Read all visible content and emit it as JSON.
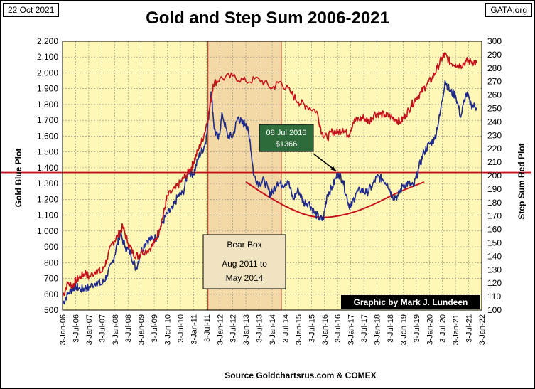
{
  "header": {
    "date": "22 Oct 2021",
    "site": "GATA.org"
  },
  "colors": {
    "plot_bg": "#FFF7B5",
    "gold_line": "#1F2A8A",
    "step_line": "#C3121B",
    "bear_box": "#F3D9A5",
    "credit_bg": "#000000",
    "callout_bg": "#2E6B3A"
  },
  "chart_data": {
    "type": "line",
    "title": "Gold and Step Sum 2006-2021",
    "xlabel": "Source  Goldchartsrus.com  & COMEX",
    "ylabel_left": "Gold    Blue Plot",
    "ylabel_right": "Step Sum     Red Plot",
    "ylim_left": [
      500,
      2200
    ],
    "ylim_right": [
      100,
      300
    ],
    "x_range": [
      2006.0,
      2022.0
    ],
    "left_ticks": [
      "500",
      "600",
      "700",
      "800",
      "900",
      "1,000",
      "1,100",
      "1,200",
      "1,300",
      "1,400",
      "1,500",
      "1,600",
      "1,700",
      "1,800",
      "1,900",
      "2,000",
      "2,100",
      "2,200"
    ],
    "left_tick_values": [
      500,
      600,
      700,
      800,
      900,
      1000,
      1100,
      1200,
      1300,
      1400,
      1500,
      1600,
      1700,
      1800,
      1900,
      2000,
      2100,
      2200
    ],
    "right_ticks": [
      "100",
      "110",
      "120",
      "130",
      "140",
      "150",
      "160",
      "170",
      "180",
      "190",
      "200",
      "210",
      "220",
      "230",
      "240",
      "250",
      "260",
      "270",
      "280",
      "290",
      "300"
    ],
    "right_tick_values": [
      100,
      110,
      120,
      130,
      140,
      150,
      160,
      170,
      180,
      190,
      200,
      210,
      220,
      230,
      240,
      250,
      260,
      270,
      280,
      290,
      300
    ],
    "x_labels": [
      "3-Jan-06",
      "3-Jul-06",
      "3-Jan-07",
      "3-Jul-07",
      "3-Jan-08",
      "3-Jul-08",
      "3-Jan-09",
      "3-Jul-09",
      "3-Jan-10",
      "3-Jul-10",
      "3-Jan-11",
      "3-Jul-11",
      "3-Jan-12",
      "3-Jul-12",
      "3-Jan-13",
      "3-Jul-13",
      "3-Jan-14",
      "3-Jul-14",
      "3-Jan-15",
      "3-Jul-15",
      "3-Jan-16",
      "3-Jul-16",
      "3-Jan-17",
      "3-Jul-17",
      "3-Jan-18",
      "3-Jul-18",
      "3-Jan-19",
      "3-Jul-19",
      "3-Jan-20",
      "3-Jul-20",
      "3-Jan-21",
      "3-Jul-21",
      "3-Jan-22"
    ],
    "x_label_positions": [
      2006.0,
      2006.5,
      2007.0,
      2007.5,
      2008.0,
      2008.5,
      2009.0,
      2009.5,
      2010.0,
      2010.5,
      2011.0,
      2011.5,
      2012.0,
      2012.5,
      2013.0,
      2013.5,
      2014.0,
      2014.5,
      2015.0,
      2015.5,
      2016.0,
      2016.5,
      2017.0,
      2017.5,
      2018.0,
      2018.5,
      2019.0,
      2019.5,
      2020.0,
      2020.5,
      2021.0,
      2021.5,
      2022.0
    ],
    "series": [
      {
        "name": "Gold",
        "axis": "left",
        "color": "#1F2A8A",
        "x": [
          2006.0,
          2006.2,
          2006.4,
          2006.5,
          2006.7,
          2006.9,
          2007.0,
          2007.3,
          2007.5,
          2007.7,
          2007.9,
          2008.1,
          2008.2,
          2008.4,
          2008.6,
          2008.8,
          2009.0,
          2009.2,
          2009.4,
          2009.6,
          2009.8,
          2010.0,
          2010.2,
          2010.4,
          2010.6,
          2010.8,
          2011.0,
          2011.2,
          2011.4,
          2011.5,
          2011.67,
          2011.8,
          2011.95,
          2012.1,
          2012.3,
          2012.5,
          2012.7,
          2012.85,
          2013.0,
          2013.15,
          2013.3,
          2013.5,
          2013.7,
          2013.9,
          2014.0,
          2014.2,
          2014.4,
          2014.6,
          2014.8,
          2015.0,
          2015.2,
          2015.4,
          2015.6,
          2015.8,
          2015.95,
          2016.1,
          2016.3,
          2016.52,
          2016.7,
          2016.9,
          2017.0,
          2017.2,
          2017.4,
          2017.6,
          2017.8,
          2018.0,
          2018.2,
          2018.4,
          2018.6,
          2018.8,
          2019.0,
          2019.2,
          2019.4,
          2019.6,
          2019.8,
          2020.0,
          2020.2,
          2020.4,
          2020.6,
          2020.8,
          2021.0,
          2021.2,
          2021.4,
          2021.6,
          2021.8
        ],
        "values": [
          540,
          600,
          640,
          650,
          630,
          640,
          640,
          680,
          660,
          720,
          800,
          920,
          980,
          900,
          860,
          760,
          870,
          940,
          950,
          960,
          1050,
          1110,
          1140,
          1220,
          1240,
          1380,
          1360,
          1470,
          1530,
          1600,
          1880,
          1640,
          1580,
          1740,
          1600,
          1600,
          1720,
          1680,
          1680,
          1580,
          1350,
          1300,
          1320,
          1240,
          1240,
          1310,
          1290,
          1320,
          1200,
          1260,
          1180,
          1180,
          1120,
          1080,
          1070,
          1230,
          1280,
          1366,
          1320,
          1180,
          1150,
          1240,
          1260,
          1240,
          1280,
          1340,
          1330,
          1300,
          1220,
          1220,
          1290,
          1300,
          1280,
          1400,
          1500,
          1550,
          1580,
          1730,
          1950,
          1880,
          1860,
          1720,
          1870,
          1800,
          1780
        ]
      },
      {
        "name": "Step Sum",
        "axis": "right",
        "color": "#C3121B",
        "x": [
          2006.0,
          2006.2,
          2006.4,
          2006.5,
          2006.7,
          2006.9,
          2007.0,
          2007.3,
          2007.5,
          2007.7,
          2007.9,
          2008.1,
          2008.3,
          2008.5,
          2008.7,
          2008.9,
          2009.0,
          2009.3,
          2009.5,
          2009.7,
          2009.9,
          2010.0,
          2010.3,
          2010.5,
          2010.7,
          2010.9,
          2011.0,
          2011.2,
          2011.4,
          2011.6,
          2011.75,
          2012.0,
          2012.5,
          2013.0,
          2013.5,
          2014.0,
          2014.3,
          2014.7,
          2015.0,
          2015.3,
          2015.7,
          2015.9,
          2016.1,
          2016.3,
          2016.5,
          2016.7,
          2016.9,
          2017.1,
          2017.3,
          2017.5,
          2017.7,
          2017.9,
          2018.1,
          2018.3,
          2018.5,
          2018.7,
          2018.9,
          2019.1,
          2019.3,
          2019.5,
          2019.7,
          2019.9,
          2020.1,
          2020.3,
          2020.5,
          2020.6,
          2020.8,
          2021.0,
          2021.2,
          2021.4,
          2021.6,
          2021.8
        ],
        "values": [
          110,
          120,
          118,
          122,
          125,
          128,
          124,
          130,
          128,
          138,
          150,
          155,
          162,
          150,
          142,
          140,
          143,
          145,
          150,
          160,
          175,
          185,
          190,
          195,
          200,
          205,
          210,
          220,
          230,
          248,
          268,
          272,
          274,
          270,
          272,
          265,
          270,
          262,
          255,
          252,
          248,
          232,
          228,
          233,
          232,
          235,
          230,
          240,
          242,
          243,
          240,
          246,
          246,
          245,
          244,
          242,
          240,
          245,
          252,
          258,
          262,
          268,
          272,
          280,
          288,
          290,
          284,
          283,
          282,
          285,
          285,
          284
        ]
      }
    ],
    "annotations": {
      "bear_box_label": [
        "Bear Box",
        "Aug 2011  to",
        "May 2014"
      ],
      "bear_box_range": [
        2011.55,
        2014.35
      ],
      "callout_label": [
        "08 Jul 2016",
        "$1366"
      ],
      "callout_point": [
        2016.52,
        1366
      ],
      "reference_line_value": 1370,
      "bowl_curve": [
        [
          2013.0,
          1310
        ],
        [
          2014.0,
          1200
        ],
        [
          2015.0,
          1115
        ],
        [
          2015.8,
          1080
        ],
        [
          2016.8,
          1100
        ],
        [
          2017.8,
          1160
        ],
        [
          2018.8,
          1245
        ],
        [
          2019.8,
          1310
        ]
      ],
      "credit": "Graphic by Mark J. Lundeen"
    }
  }
}
